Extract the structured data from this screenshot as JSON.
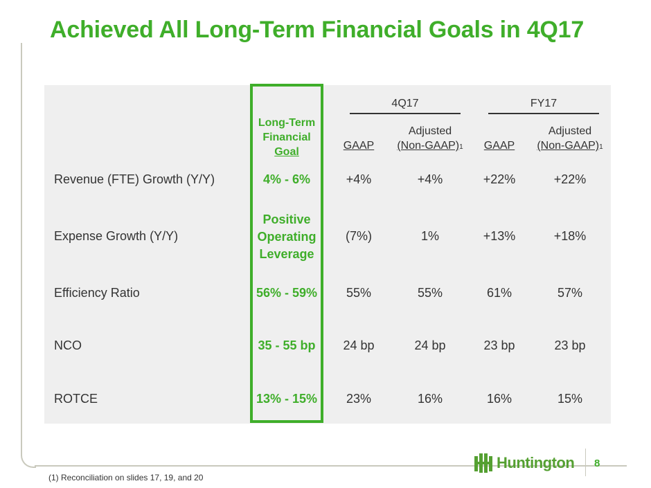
{
  "title": "Achieved All Long-Term Financial Goals in 4Q17",
  "header": {
    "goal_line1": "Long-Term",
    "goal_line2": "Financial",
    "goal_line3": "Goal",
    "group_4q17": "4Q17",
    "group_fy17": "FY17",
    "gaap": "GAAP",
    "adjusted": "Adjusted",
    "non_gaap": "(Non-GAAP)",
    "footnote_ref": "1"
  },
  "rows": [
    {
      "label": "Revenue (FTE) Growth (Y/Y)",
      "goal": "4% - 6%",
      "q_gaap": "+4%",
      "q_adj": "+4%",
      "fy_gaap": "+22%",
      "fy_adj": "+22%"
    },
    {
      "label": "Expense Growth (Y/Y)",
      "goal_line1": "Positive",
      "goal_line2": "Operating",
      "goal_line3": "Leverage",
      "q_gaap": "(7%)",
      "q_adj": "1%",
      "fy_gaap": "+13%",
      "fy_adj": "+18%"
    },
    {
      "label": "Efficiency Ratio",
      "goal": "56% - 59%",
      "q_gaap": "55%",
      "q_adj": "55%",
      "fy_gaap": "61%",
      "fy_adj": "57%"
    },
    {
      "label": "NCO",
      "goal": "35 - 55 bp",
      "q_gaap": "24 bp",
      "q_adj": "24 bp",
      "fy_gaap": "23 bp",
      "fy_adj": "23 bp"
    },
    {
      "label": "ROTCE",
      "goal": "13% - 15%",
      "q_gaap": "23%",
      "q_adj": "16%",
      "fy_gaap": "16%",
      "fy_adj": "15%"
    }
  ],
  "footnote": "(1)  Reconciliation on slides 17, 19, and 20",
  "logo_text": "Huntington",
  "page_number": "8",
  "colors": {
    "accent_green": "#3fae2a",
    "text": "#333333",
    "table_bg": "#efefef"
  }
}
